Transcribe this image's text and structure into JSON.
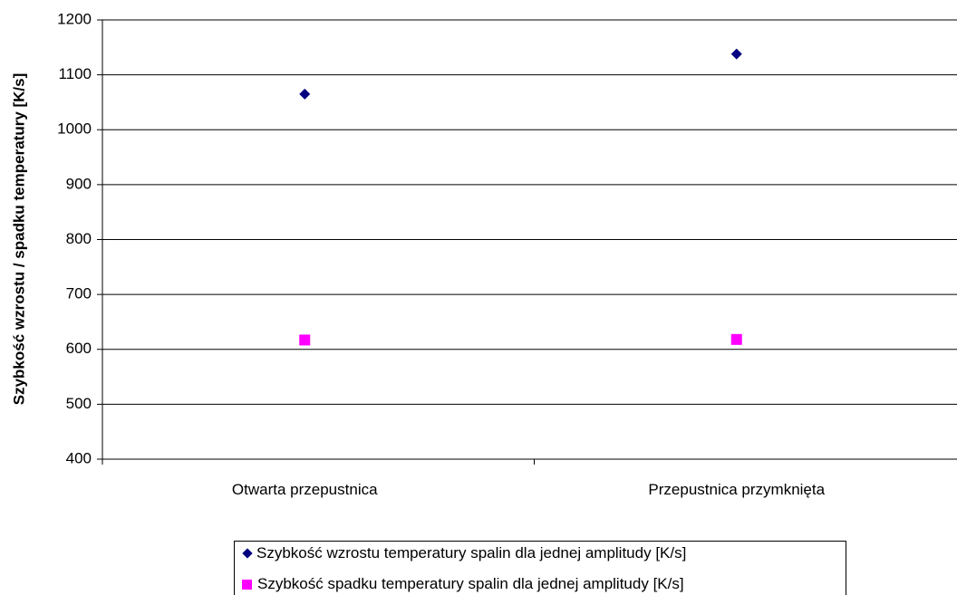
{
  "chart_data": {
    "type": "scatter",
    "ylabel": "Szybkość wzrostu / spadku temperatury [K/s]",
    "categories": [
      "Otwarta przepustnica",
      "Przepustnica przymknięta"
    ],
    "series": [
      {
        "name": "Szybkość wzrostu temperatury spalin dla jednej amplitudy [K/s]",
        "color": "#000080",
        "marker": "diamond",
        "values": [
          1065,
          1138
        ]
      },
      {
        "name": "Szybkość spadku temperatury spalin dla jednej amplitudy [K/s]",
        "color": "#ff00ff",
        "marker": "square",
        "values": [
          617,
          618
        ]
      }
    ],
    "ylim": [
      400,
      1200
    ],
    "yticks": [
      400,
      500,
      600,
      700,
      800,
      900,
      1000,
      1100,
      1200
    ],
    "grid": true,
    "legend": "bottom"
  }
}
